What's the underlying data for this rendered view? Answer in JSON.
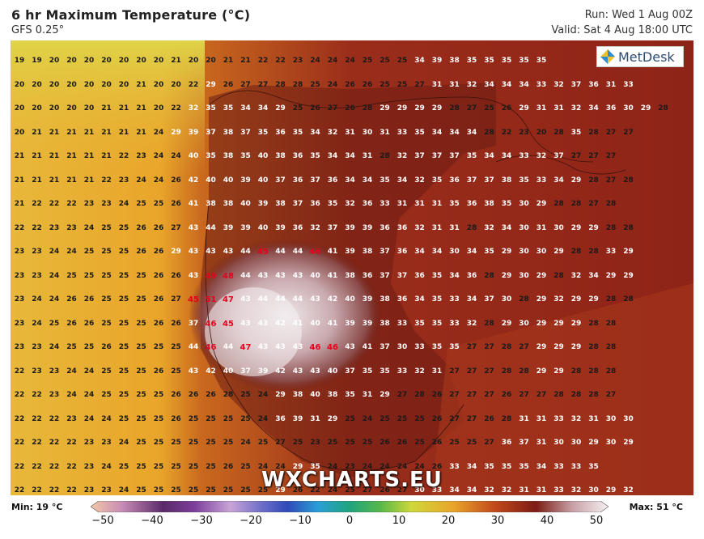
{
  "header": {
    "title": "6 hr Maximum Temperature (°C)",
    "model": "GFS 0.25°",
    "run": "Run: Wed 1 Aug 00Z",
    "valid": "Valid: Sat 4 Aug 18:00 UTC"
  },
  "logo": {
    "text": "MetDesk"
  },
  "watermark": "WXCHARTS.EU",
  "legend": {
    "min_label": "Min: 19 °C",
    "max_label": "Max: 51 °C",
    "ticks": [
      "−50",
      "−40",
      "−30",
      "−20",
      "−10",
      "0",
      "10",
      "20",
      "30",
      "40",
      "50"
    ]
  },
  "colors": {
    "hot_text": "#e8001c",
    "normal_text": "#ffffff",
    "cool_text": "#1a1a1a"
  },
  "grid_values": [
    [
      19,
      19,
      20,
      20,
      20,
      20,
      20,
      20,
      20,
      21,
      20,
      20,
      21,
      21,
      22,
      22,
      23,
      24,
      24,
      24,
      25,
      25,
      25,
      34,
      39,
      38,
      35,
      35,
      35,
      35,
      35
    ],
    [
      20,
      20,
      20,
      20,
      20,
      20,
      20,
      21,
      20,
      20,
      22,
      29,
      26,
      27,
      27,
      28,
      28,
      25,
      24,
      26,
      26,
      25,
      25,
      27,
      31,
      31,
      32,
      34,
      34,
      34,
      33,
      32,
      37,
      36,
      31,
      33
    ],
    [
      20,
      20,
      20,
      20,
      20,
      21,
      21,
      21,
      20,
      22,
      32,
      35,
      35,
      34,
      34,
      29,
      25,
      26,
      27,
      26,
      28,
      29,
      29,
      29,
      29,
      28,
      27,
      25,
      26,
      29,
      31,
      31,
      32,
      34,
      36,
      30,
      29,
      28
    ],
    [
      20,
      21,
      21,
      21,
      21,
      21,
      21,
      21,
      24,
      29,
      39,
      37,
      38,
      37,
      35,
      36,
      35,
      34,
      32,
      31,
      30,
      31,
      33,
      35,
      34,
      34,
      34,
      28,
      22,
      23,
      20,
      28,
      35,
      28,
      27,
      27
    ],
    [
      21,
      21,
      21,
      21,
      21,
      21,
      22,
      23,
      24,
      24,
      40,
      35,
      38,
      35,
      40,
      38,
      36,
      35,
      34,
      34,
      31,
      28,
      32,
      37,
      37,
      37,
      35,
      34,
      34,
      33,
      32,
      37,
      27,
      27,
      27
    ],
    [
      21,
      21,
      21,
      21,
      21,
      22,
      23,
      24,
      24,
      26,
      42,
      40,
      40,
      39,
      40,
      37,
      36,
      37,
      36,
      34,
      34,
      35,
      34,
      32,
      35,
      36,
      37,
      37,
      38,
      35,
      33,
      34,
      29,
      28,
      27,
      28
    ],
    [
      21,
      22,
      22,
      22,
      23,
      23,
      24,
      25,
      25,
      26,
      41,
      38,
      38,
      40,
      39,
      38,
      37,
      36,
      35,
      32,
      36,
      33,
      31,
      31,
      31,
      35,
      36,
      38,
      35,
      30,
      29,
      28,
      28,
      27,
      28
    ],
    [
      22,
      22,
      23,
      23,
      24,
      25,
      25,
      26,
      26,
      27,
      43,
      44,
      39,
      39,
      40,
      39,
      36,
      32,
      37,
      39,
      39,
      36,
      36,
      32,
      31,
      31,
      28,
      32,
      34,
      30,
      31,
      30,
      29,
      29,
      28,
      28
    ],
    [
      23,
      23,
      24,
      24,
      25,
      25,
      25,
      26,
      26,
      29,
      43,
      43,
      43,
      44,
      45,
      44,
      44,
      46,
      41,
      39,
      38,
      37,
      36,
      34,
      34,
      30,
      34,
      35,
      29,
      30,
      30,
      29,
      28,
      28,
      33,
      29
    ],
    [
      23,
      23,
      24,
      25,
      25,
      25,
      25,
      25,
      26,
      26,
      43,
      49,
      48,
      44,
      43,
      43,
      43,
      40,
      41,
      38,
      36,
      37,
      37,
      36,
      35,
      34,
      36,
      28,
      29,
      30,
      29,
      28,
      32,
      34,
      29,
      29
    ],
    [
      23,
      24,
      24,
      26,
      26,
      25,
      25,
      25,
      26,
      27,
      45,
      51,
      47,
      43,
      44,
      44,
      44,
      43,
      42,
      40,
      39,
      38,
      36,
      34,
      35,
      33,
      34,
      37,
      30,
      28,
      29,
      32,
      29,
      29,
      28,
      28
    ],
    [
      23,
      24,
      25,
      26,
      26,
      25,
      25,
      25,
      26,
      26,
      37,
      46,
      45,
      43,
      43,
      42,
      41,
      40,
      41,
      39,
      39,
      38,
      33,
      35,
      35,
      33,
      32,
      28,
      29,
      30,
      29,
      29,
      29,
      28,
      28
    ],
    [
      23,
      23,
      24,
      25,
      25,
      26,
      25,
      25,
      25,
      25,
      44,
      46,
      44,
      47,
      43,
      43,
      43,
      46,
      46,
      43,
      41,
      37,
      30,
      33,
      35,
      35,
      27,
      27,
      28,
      27,
      29,
      29,
      29,
      28,
      28
    ],
    [
      22,
      23,
      23,
      24,
      24,
      25,
      25,
      25,
      26,
      25,
      43,
      42,
      40,
      37,
      39,
      42,
      43,
      43,
      40,
      37,
      35,
      35,
      33,
      32,
      31,
      27,
      27,
      27,
      28,
      28,
      29,
      29,
      28,
      28,
      28
    ],
    [
      22,
      22,
      23,
      24,
      24,
      25,
      25,
      25,
      25,
      26,
      26,
      26,
      28,
      25,
      24,
      29,
      38,
      40,
      38,
      35,
      31,
      29,
      27,
      28,
      26,
      27,
      27,
      27,
      26,
      27,
      27,
      28,
      28,
      28,
      27
    ],
    [
      22,
      22,
      22,
      23,
      24,
      24,
      25,
      25,
      25,
      26,
      25,
      25,
      25,
      25,
      24,
      36,
      39,
      31,
      29,
      25,
      24,
      25,
      25,
      25,
      26,
      27,
      27,
      26,
      28,
      31,
      31,
      33,
      32,
      31,
      30,
      30
    ],
    [
      22,
      22,
      22,
      22,
      23,
      23,
      24,
      25,
      25,
      25,
      25,
      25,
      25,
      24,
      25,
      27,
      25,
      23,
      25,
      25,
      25,
      26,
      26,
      25,
      26,
      25,
      25,
      27,
      36,
      37,
      31,
      30,
      30,
      29,
      30,
      29
    ],
    [
      22,
      22,
      22,
      22,
      23,
      24,
      25,
      25,
      25,
      25,
      25,
      25,
      26,
      25,
      24,
      24,
      29,
      35,
      24,
      23,
      24,
      24,
      24,
      24,
      26,
      33,
      34,
      35,
      35,
      35,
      34,
      33,
      33,
      35
    ],
    [
      22,
      22,
      22,
      22,
      23,
      23,
      24,
      25,
      25,
      25,
      25,
      25,
      25,
      25,
      25,
      29,
      26,
      22,
      24,
      25,
      27,
      26,
      27,
      30,
      33,
      34,
      34,
      32,
      32,
      31,
      31,
      33,
      32,
      30,
      29,
      32
    ]
  ]
}
